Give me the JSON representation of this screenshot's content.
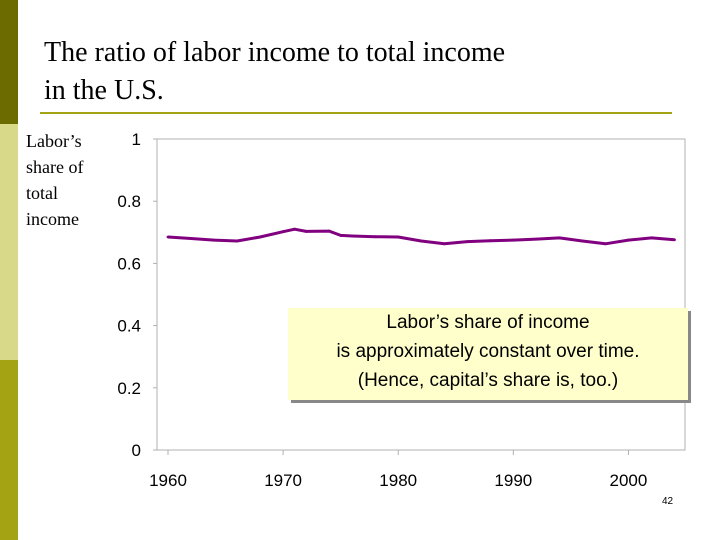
{
  "title_line1": "The ratio of labor income to total income",
  "title_line2": "in the U.S.",
  "y_label": [
    "Labor’s",
    "share of",
    "total",
    "income"
  ],
  "callout": [
    "Labor’s share of income",
    "is approximately constant over time.",
    "(Hence, capital’s share is, too.)"
  ],
  "page_number": "42",
  "chart_data": {
    "type": "line",
    "x": [
      1960,
      1962,
      1964,
      1966,
      1968,
      1970,
      1971,
      1972,
      1974,
      1975,
      1976,
      1978,
      1980,
      1982,
      1984,
      1986,
      1988,
      1990,
      1992,
      1994,
      1996,
      1998,
      2000,
      2002,
      2004
    ],
    "series": [
      {
        "values": [
          0.685,
          0.68,
          0.675,
          0.672,
          0.685,
          0.702,
          0.71,
          0.703,
          0.704,
          0.69,
          0.688,
          0.686,
          0.685,
          0.672,
          0.663,
          0.67,
          0.673,
          0.675,
          0.678,
          0.682,
          0.672,
          0.663,
          0.675,
          0.682,
          0.676
        ],
        "color": "#800080"
      }
    ],
    "x_ticks": [
      "1960",
      "1970",
      "1980",
      "1990",
      "2000"
    ],
    "y_ticks": [
      "0",
      "0.2",
      "0.4",
      "0.6",
      "0.8",
      "1"
    ],
    "xlim": [
      1960,
      2005
    ],
    "ylim": [
      0,
      1
    ],
    "grid": false,
    "legend": "none"
  }
}
